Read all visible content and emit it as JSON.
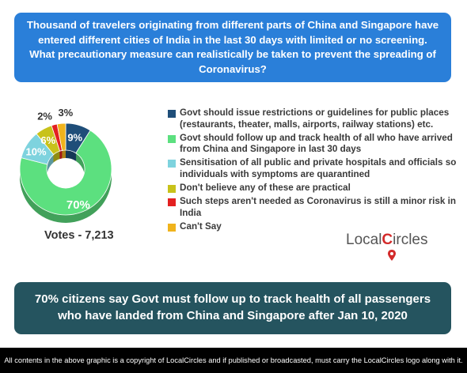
{
  "question": "Thousand of travelers originating from different parts of China and Singapore have entered different cities of India in the last 30 days with limited or no screening. What precautionary measure can realistically be taken to prevent the spreading of Coronavirus?",
  "votes_label": "Votes - 7,213",
  "headline": "70% citizens say Govt must follow up to track health of all passengers who have landed from China and Singapore after Jan 10, 2020",
  "footer": "All contents in the above graphic is a copyright of LocalCircles and if published or broadcasted, must carry the LocalCircles logo along with it.",
  "logo": {
    "part1": "Local",
    "part2": "ircles",
    "mark": "C"
  },
  "chart_data": {
    "type": "pie",
    "donut": true,
    "series": [
      {
        "label": "Govt should issue restrictions or guidelines for public places (restaurants, theater, malls, airports, railway stations) etc.",
        "value": 9,
        "pct_label": "9%",
        "color": "#1f4e79"
      },
      {
        "label": "Govt should follow up and track health of all who have arrived from China and Singapore in last 30 days",
        "value": 70,
        "pct_label": "70%",
        "color": "#5ce07f"
      },
      {
        "label": "Sensitisation of all public and private hospitals and officials so individuals with symptoms are quarantined",
        "value": 10,
        "pct_label": "10%",
        "color": "#7ed3de"
      },
      {
        "label": "Don't believe any of these are practical",
        "value": 6,
        "pct_label": "6%",
        "color": "#c8c21a"
      },
      {
        "label": "Such steps aren't needed as Coronavirus is still a minor risk in India",
        "value": 2,
        "pct_label": "2%",
        "color": "#e32020"
      },
      {
        "label": "Can't Say",
        "value": 3,
        "pct_label": "3%",
        "color": "#f0b31c"
      }
    ]
  }
}
